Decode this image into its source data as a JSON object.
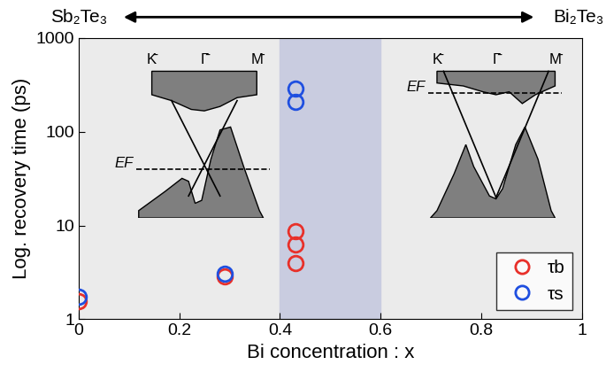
{
  "chart_data": {
    "type": "scatter",
    "xlabel": "Bi concentration : x",
    "ylabel": "Log. recovery time (ps)",
    "xlim": [
      0,
      1
    ],
    "xticks": [
      0,
      0.2,
      0.4,
      0.6,
      0.8,
      1
    ],
    "ylim": [
      1,
      1000
    ],
    "yticks": [
      1,
      10,
      100,
      1000
    ],
    "log": "y",
    "legend": "lower right",
    "shaded_range": [
      0.4,
      0.6
    ],
    "series": [
      {
        "name": "τb",
        "color": "#e8302a",
        "marker": "o",
        "x": [
          0,
          0.29,
          0.43,
          0.43,
          0.43
        ],
        "values": [
          1.55,
          2.85,
          4.0,
          6.3,
          8.7
        ]
      },
      {
        "name": "τs",
        "color": "#1f4fe0",
        "marker": "o",
        "x": [
          0,
          0.29,
          0.43,
          0.43
        ],
        "values": [
          1.75,
          3.05,
          210,
          290
        ]
      }
    ],
    "composition_axis": {
      "left": "Sb₂Te₃",
      "right": "Bi₂Te₃"
    },
    "insets": [
      {
        "k_labels": [
          "K̄",
          "Γ̄",
          "M̄"
        ],
        "fermi_label": "EF"
      },
      {
        "k_labels": [
          "K̄",
          "Γ̄",
          "M̄"
        ],
        "fermi_label": "EF"
      }
    ]
  }
}
